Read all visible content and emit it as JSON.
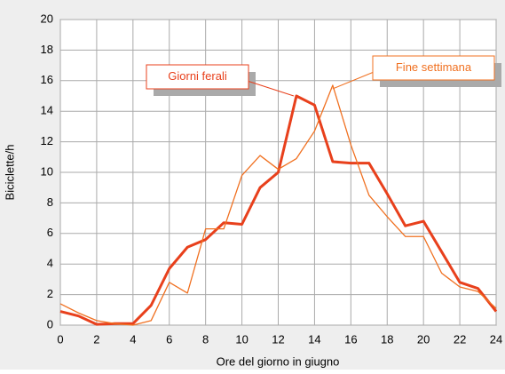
{
  "chart_data": {
    "type": "line",
    "x": [
      0,
      1,
      2,
      3,
      4,
      5,
      6,
      7,
      8,
      9,
      10,
      11,
      12,
      13,
      14,
      15,
      16,
      17,
      18,
      19,
      20,
      21,
      22,
      23,
      24
    ],
    "series": [
      {
        "name": "Giorni ferali",
        "color": "#e8401c",
        "width": 3,
        "values": [
          0.9,
          0.6,
          0.05,
          0.1,
          0.1,
          1.3,
          3.7,
          5.1,
          5.6,
          6.7,
          6.6,
          9.0,
          10.0,
          15.0,
          14.4,
          10.7,
          10.6,
          10.6,
          8.6,
          6.5,
          6.8,
          4.8,
          2.8,
          2.4,
          0.9
        ]
      },
      {
        "name": "Fine settimana",
        "color": "#f07020",
        "width": 1.3,
        "values": [
          1.4,
          0.8,
          0.3,
          0.1,
          0.0,
          0.3,
          2.8,
          2.1,
          6.3,
          6.3,
          9.8,
          11.1,
          10.2,
          10.9,
          12.7,
          15.7,
          11.8,
          8.5,
          7.1,
          5.8,
          5.8,
          3.4,
          2.5,
          2.2,
          1.1
        ]
      }
    ],
    "xlabel": "Ore del giorno in giugno",
    "ylabel": "Biciclette/h",
    "xlim": [
      0,
      24
    ],
    "xticks": [
      0,
      2,
      4,
      6,
      8,
      10,
      12,
      14,
      16,
      18,
      20,
      22,
      24
    ],
    "ylim": [
      0,
      20
    ],
    "yticks": [
      0,
      2,
      4,
      6,
      8,
      10,
      12,
      14,
      16,
      18,
      20
    ],
    "grid": true
  }
}
